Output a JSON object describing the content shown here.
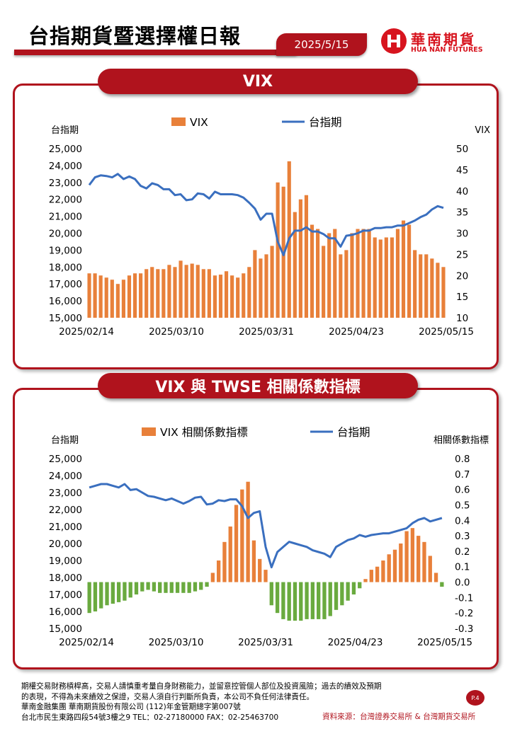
{
  "header": {
    "title": "台指期貨暨選擇權日報",
    "date": "2025/5/15",
    "logo_cn": "華南期貨",
    "logo_en": "HUA NAN FUTURES"
  },
  "panels": [
    {
      "title": "VIX"
    },
    {
      "title": "VIX 與 TWSE 相關係數指標"
    }
  ],
  "colors": {
    "brand": "#b0131d",
    "bar": "#e8803a",
    "bar_negative": "#6aaa3f",
    "line": "#3a6fbf"
  },
  "chart_data": [
    {
      "type": "bar+line",
      "legend": [
        "VIX",
        "台指期"
      ],
      "legend_position": "top-center",
      "left_axis": {
        "label": "台指期",
        "ylim": [
          15000,
          25000
        ],
        "ticks": [
          "15,000",
          "16,000",
          "17,000",
          "18,000",
          "19,000",
          "20,000",
          "21,000",
          "22,000",
          "23,000",
          "24,000",
          "25,000"
        ]
      },
      "right_axis": {
        "label": "VIX",
        "ylim": [
          10,
          50
        ],
        "ticks": [
          "10",
          "15",
          "20",
          "25",
          "30",
          "35",
          "40",
          "45",
          "50"
        ]
      },
      "x_ticks": [
        "2025/02/14",
        "2025/03/10",
        "2025/03/31",
        "2025/04/23",
        "2025/05/15"
      ],
      "series": [
        {
          "name": "VIX",
          "type": "bar",
          "axis": "right",
          "values": [
            20.5,
            20.5,
            20,
            19.5,
            19,
            18,
            19,
            20,
            20.5,
            20.5,
            21.5,
            22,
            21.5,
            21.5,
            22.5,
            22,
            23.5,
            22.5,
            22.8,
            22.5,
            21.5,
            21.5,
            20,
            20.2,
            21,
            20,
            19.5,
            20.5,
            22,
            26,
            24,
            25,
            27,
            42,
            41,
            47,
            35,
            38,
            39,
            32,
            31,
            27,
            30,
            31,
            25,
            26,
            30,
            31,
            31,
            31,
            29,
            28.5,
            29,
            29,
            31,
            33,
            32,
            26,
            25,
            25,
            24,
            23,
            22
          ],
          "approx": true
        },
        {
          "name": "台指期",
          "type": "line",
          "axis": "left",
          "values": [
            22850,
            23300,
            23420,
            23380,
            23300,
            23500,
            23200,
            23350,
            23200,
            22800,
            22650,
            22950,
            22850,
            22600,
            22600,
            22250,
            22300,
            21950,
            22000,
            22350,
            22300,
            22050,
            22450,
            22300,
            22300,
            22300,
            22250,
            22100,
            21800,
            21450,
            20800,
            21150,
            21150,
            19500,
            18700,
            19700,
            20150,
            20150,
            20350,
            20100,
            20100,
            19950,
            19700,
            19700,
            19200,
            19850,
            19900,
            20000,
            20150,
            20150,
            20300,
            20300,
            20350,
            20350,
            20450,
            20450,
            20600,
            20750,
            20950,
            21100,
            21400,
            21600,
            21500
          ],
          "approx": true
        }
      ]
    },
    {
      "type": "bar+line",
      "legend": [
        "VIX 相關係數指標",
        "台指期"
      ],
      "legend_position": "top-center",
      "left_axis": {
        "label": "台指期",
        "ylim": [
          15000,
          25000
        ],
        "ticks": [
          "15,000",
          "16,000",
          "17,000",
          "18,000",
          "19,000",
          "20,000",
          "21,000",
          "22,000",
          "23,000",
          "24,000",
          "25,000"
        ]
      },
      "right_axis": {
        "label": "相關係數指標",
        "ylim": [
          -0.3,
          0.8
        ],
        "ticks": [
          "-0.3",
          "-0.2",
          "-0.1",
          "0.0",
          "0.1",
          "0.2",
          "0.3",
          "0.4",
          "0.5",
          "0.6",
          "0.7",
          "0.8"
        ]
      },
      "x_ticks": [
        "2025/02/14",
        "2025/03/10",
        "2025/03/31",
        "2025/04/23",
        "2025/05/15"
      ],
      "series": [
        {
          "name": "VIX 相關係數指標",
          "type": "bar",
          "axis": "right",
          "values": [
            -0.2,
            -0.19,
            -0.17,
            -0.15,
            -0.14,
            -0.13,
            -0.12,
            -0.1,
            -0.08,
            -0.06,
            -0.05,
            -0.06,
            -0.07,
            -0.07,
            -0.07,
            -0.07,
            -0.07,
            -0.07,
            -0.06,
            -0.05,
            -0.03,
            0.06,
            0.14,
            0.26,
            0.36,
            0.5,
            0.6,
            0.65,
            0.27,
            0.15,
            0.08,
            -0.15,
            -0.2,
            -0.24,
            -0.25,
            -0.25,
            -0.25,
            -0.24,
            -0.24,
            -0.24,
            -0.24,
            -0.22,
            -0.18,
            -0.15,
            -0.12,
            -0.08,
            -0.04,
            0.02,
            0.08,
            0.1,
            0.14,
            0.18,
            0.21,
            0.25,
            0.33,
            0.35,
            0.3,
            0.26,
            0.17,
            0.06,
            -0.03
          ],
          "approx": true
        },
        {
          "name": "台指期",
          "type": "line",
          "axis": "left",
          "values": [
            23300,
            23400,
            23500,
            23500,
            23400,
            23300,
            23500,
            23150,
            23200,
            23000,
            22800,
            22750,
            22650,
            22550,
            22650,
            22500,
            22350,
            22500,
            22700,
            22750,
            22300,
            22350,
            22550,
            22500,
            22600,
            22600,
            22200,
            21500,
            21800,
            21900,
            19800,
            18600,
            19500,
            19800,
            20100,
            20000,
            19900,
            19800,
            19600,
            19500,
            19400,
            19200,
            19800,
            20000,
            20200,
            20300,
            20500,
            20400,
            20500,
            20550,
            20600,
            20600,
            20700,
            20800,
            20900,
            21200,
            21400,
            21500,
            21300,
            21400,
            21500
          ],
          "approx": true
        }
      ]
    }
  ],
  "footer": {
    "disclaimer_1": "期權交易財務槓桿高，交易人請慎重考量自身財務能力，並留意控管個人部位及投資風險；過去的績效及預期",
    "disclaimer_2": "的表現，不得為未來績效之保證，交易人須自行判斷所負責，本公司不負任何法律責任。",
    "company": "華南金融集團 華南期貨股份有限公司 (112)年金管期總字第007號",
    "address": "台北市民生東路四段54號3樓之9  TEL：02-27180000   FAX：02-25463700",
    "source": "資料來源：台灣證券交易所 & 台灣期貨交易所",
    "page": "P.4"
  }
}
